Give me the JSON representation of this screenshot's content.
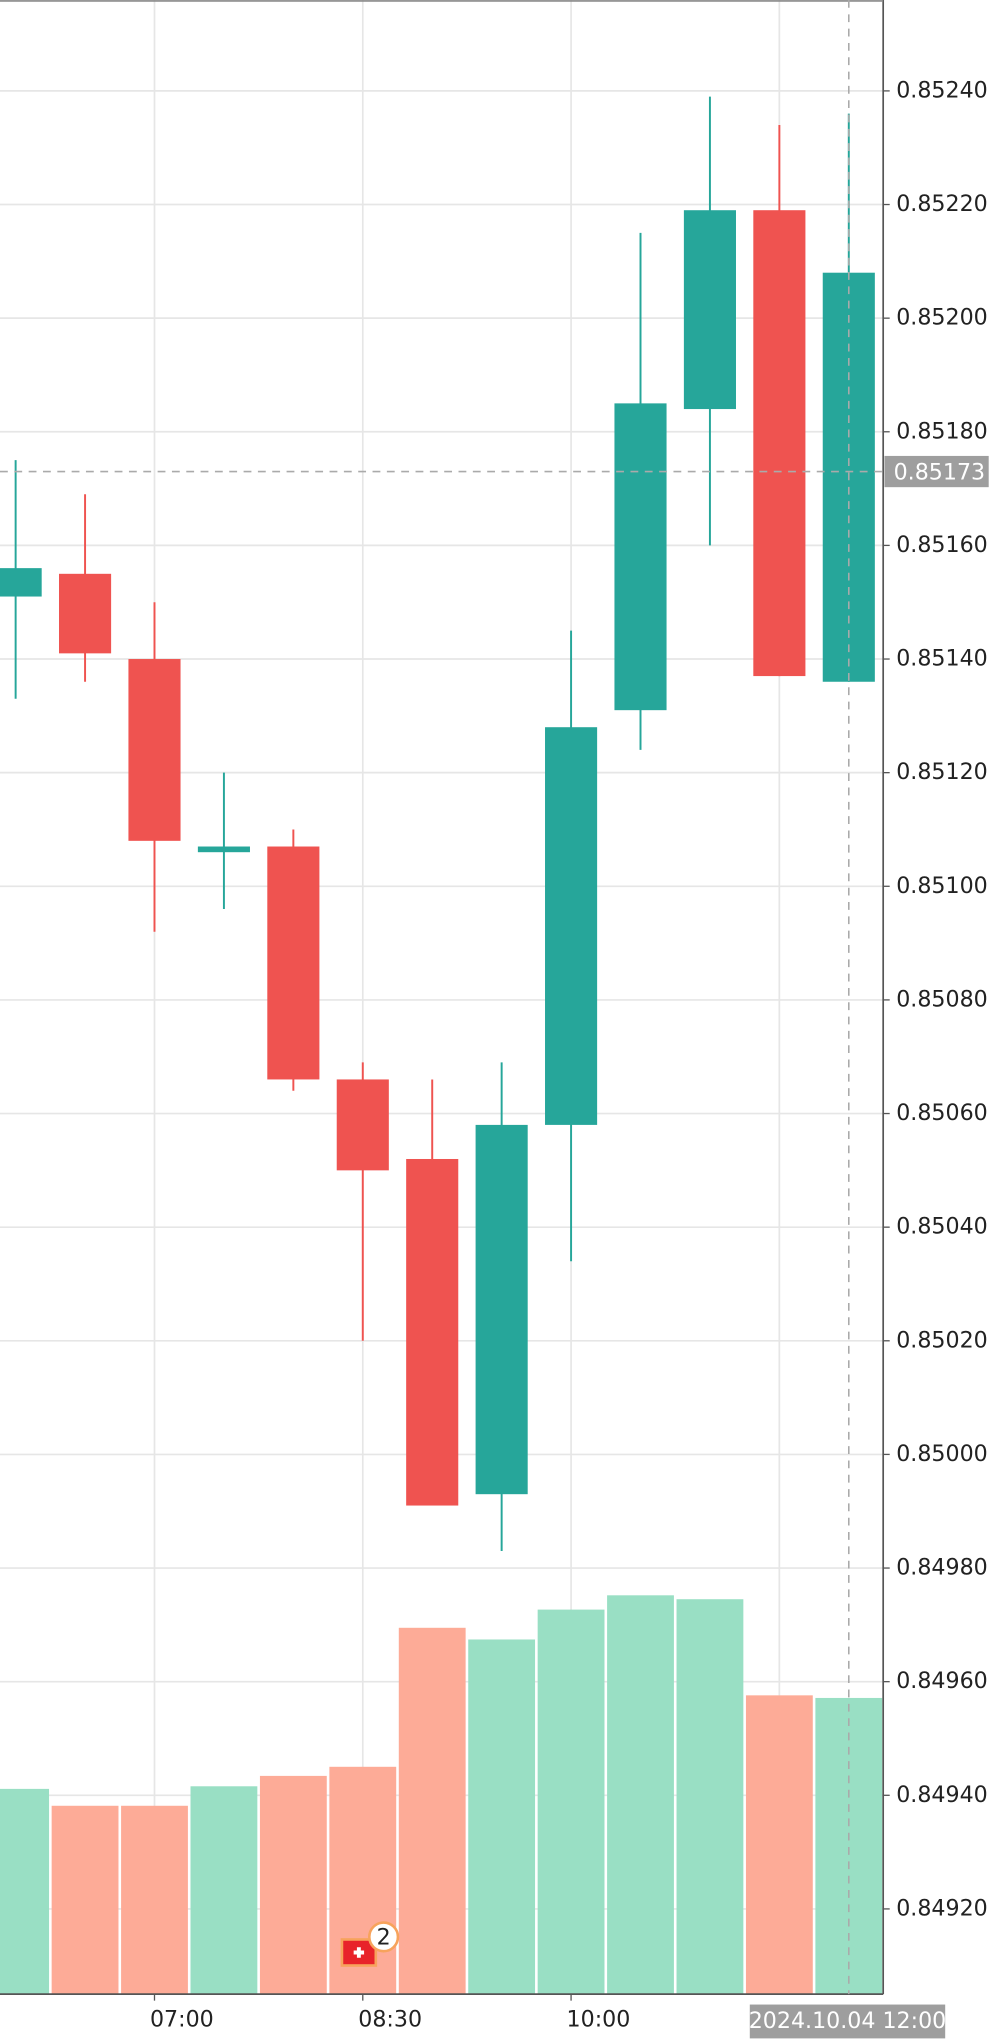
{
  "chart_data": {
    "type": "candlestick",
    "categories": [
      null,
      null,
      "07:00",
      null,
      null,
      "08:30",
      null,
      null,
      "10:00",
      null,
      null,
      null,
      null
    ],
    "open": [
      0.85151,
      0.85155,
      0.8514,
      0.85106,
      0.85107,
      0.85066,
      0.85052,
      0.84993,
      0.85058,
      0.85131,
      0.85184,
      0.85219,
      0.85136
    ],
    "high": [
      0.85175,
      0.85169,
      0.8515,
      0.8512,
      0.8511,
      0.85069,
      0.85066,
      0.85069,
      0.85145,
      0.85215,
      0.85239,
      0.85234,
      0.85236
    ],
    "low": [
      0.85133,
      0.85136,
      0.85092,
      0.85096,
      0.85064,
      0.8502,
      0.84991,
      0.84983,
      0.85034,
      0.85124,
      0.8516,
      0.85137,
      0.85136
    ],
    "close": [
      0.85156,
      0.85141,
      0.85108,
      0.85107,
      0.85066,
      0.8505,
      0.84991,
      0.85058,
      0.85128,
      0.85185,
      0.85219,
      0.85137,
      0.85208
    ],
    "volume": [
      158,
      145,
      145,
      160,
      168,
      175,
      282,
      273,
      296,
      307,
      304,
      230,
      228
    ],
    "up_color": "#26a69a",
    "down_color": "#ef5350",
    "volume_up_color": "#99dfc4",
    "volume_down_color": "#fdab97",
    "ylim": [
      0.84905,
      0.85256
    ],
    "yticks": [
      {
        "value": 0.8492,
        "label": "0.84920"
      },
      {
        "value": 0.8494,
        "label": "0.84940"
      },
      {
        "value": 0.8496,
        "label": "0.84960"
      },
      {
        "value": 0.8498,
        "label": "0.84980"
      },
      {
        "value": 0.85,
        "label": "0.85000"
      },
      {
        "value": 0.8502,
        "label": "0.85020"
      },
      {
        "value": 0.8504,
        "label": "0.85040"
      },
      {
        "value": 0.8506,
        "label": "0.85060"
      },
      {
        "value": 0.8508,
        "label": "0.85080"
      },
      {
        "value": 0.851,
        "label": "0.85100"
      },
      {
        "value": 0.8512,
        "label": "0.85120"
      },
      {
        "value": 0.8514,
        "label": "0.85140"
      },
      {
        "value": 0.8516,
        "label": "0.85160"
      },
      {
        "value": 0.8518,
        "label": "0.85180"
      },
      {
        "value": 0.852,
        "label": "0.85200"
      },
      {
        "value": 0.8522,
        "label": "0.85220"
      },
      {
        "value": 0.8524,
        "label": "0.85240"
      }
    ],
    "grid": true,
    "crosshair": {
      "price": {
        "value": 0.85173,
        "label": "0.85173"
      },
      "index": 12,
      "time_label": "2024.10.04 12:00"
    },
    "event_marker": {
      "index": 5,
      "count": 2
    }
  }
}
